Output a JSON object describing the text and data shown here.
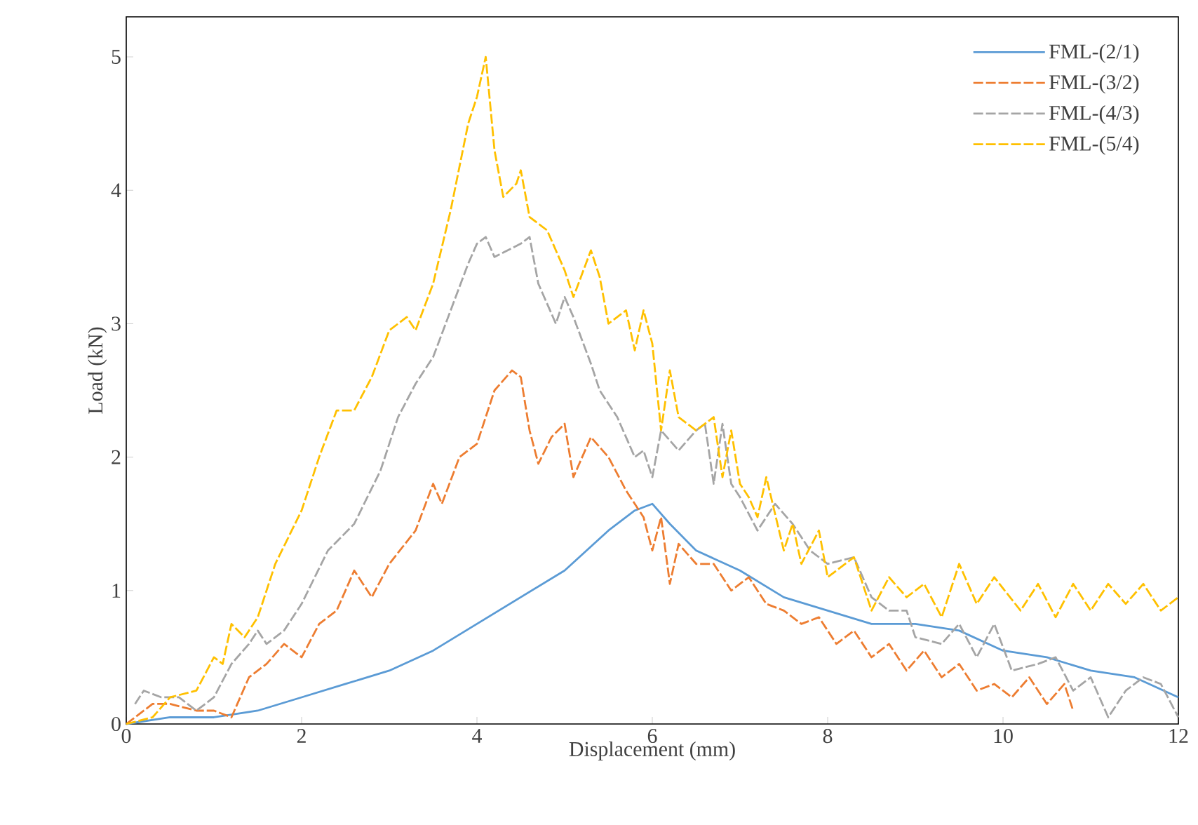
{
  "chart_data": {
    "type": "line",
    "xlabel": "Displacement (mm)",
    "ylabel": "Load (kN)",
    "xlim": [
      0,
      12
    ],
    "ylim": [
      0,
      5.3
    ],
    "xticks": [
      0,
      2,
      4,
      6,
      8,
      10,
      12
    ],
    "yticks": [
      0,
      1,
      2,
      3,
      4,
      5
    ],
    "grid": false,
    "legend": "top right",
    "marker": "none",
    "series": [
      {
        "name": "FML-(2/1)",
        "color": "#5b9bd5",
        "line_style": "solid",
        "x": [
          0,
          0.5,
          1.0,
          1.5,
          2.0,
          2.5,
          3.0,
          3.5,
          4.0,
          4.5,
          5.0,
          5.5,
          5.8,
          6.0,
          6.2,
          6.5,
          7.0,
          7.5,
          8.0,
          8.5,
          9.0,
          9.5,
          10.0,
          10.5,
          11.0,
          11.5,
          12.0
        ],
        "values": [
          0,
          0.05,
          0.05,
          0.1,
          0.2,
          0.3,
          0.4,
          0.55,
          0.75,
          0.95,
          1.15,
          1.45,
          1.6,
          1.65,
          1.5,
          1.3,
          1.15,
          0.95,
          0.85,
          0.75,
          0.75,
          0.7,
          0.55,
          0.5,
          0.4,
          0.35,
          0.2
        ]
      },
      {
        "name": "FML-(3/2)",
        "color": "#ed7d31",
        "line_style": "dashed",
        "x": [
          0,
          0.3,
          0.5,
          0.8,
          1.0,
          1.2,
          1.4,
          1.6,
          1.8,
          2.0,
          2.2,
          2.4,
          2.6,
          2.8,
          3.0,
          3.3,
          3.5,
          3.6,
          3.8,
          4.0,
          4.2,
          4.4,
          4.5,
          4.6,
          4.7,
          4.85,
          5.0,
          5.1,
          5.3,
          5.5,
          5.7,
          5.9,
          6.0,
          6.1,
          6.2,
          6.3,
          6.5,
          6.7,
          6.9,
          7.1,
          7.3,
          7.5,
          7.7,
          7.9,
          8.1,
          8.3,
          8.5,
          8.7,
          8.9,
          9.1,
          9.3,
          9.5,
          9.7,
          9.9,
          10.1,
          10.3,
          10.5,
          10.7,
          10.8
        ],
        "values": [
          0,
          0.15,
          0.15,
          0.1,
          0.1,
          0.05,
          0.35,
          0.45,
          0.6,
          0.5,
          0.75,
          0.85,
          1.15,
          0.95,
          1.2,
          1.45,
          1.8,
          1.65,
          2.0,
          2.1,
          2.5,
          2.65,
          2.6,
          2.2,
          1.95,
          2.15,
          2.25,
          1.85,
          2.15,
          2.0,
          1.75,
          1.55,
          1.3,
          1.55,
          1.05,
          1.35,
          1.2,
          1.2,
          1.0,
          1.1,
          0.9,
          0.85,
          0.75,
          0.8,
          0.6,
          0.7,
          0.5,
          0.6,
          0.4,
          0.55,
          0.35,
          0.45,
          0.25,
          0.3,
          0.2,
          0.35,
          0.15,
          0.3,
          0.1
        ]
      },
      {
        "name": "FML-(4/3)",
        "color": "#a5a5a5",
        "line_style": "dashed",
        "x": [
          0.1,
          0.2,
          0.4,
          0.6,
          0.8,
          1.0,
          1.2,
          1.4,
          1.5,
          1.6,
          1.8,
          2.0,
          2.3,
          2.6,
          2.9,
          3.1,
          3.3,
          3.5,
          3.7,
          3.9,
          4.0,
          4.1,
          4.2,
          4.5,
          4.6,
          4.7,
          4.9,
          5.0,
          5.1,
          5.3,
          5.4,
          5.6,
          5.8,
          5.9,
          6.0,
          6.1,
          6.3,
          6.5,
          6.6,
          6.7,
          6.8,
          6.9,
          7.0,
          7.2,
          7.4,
          7.6,
          7.8,
          8.0,
          8.3,
          8.5,
          8.7,
          8.9,
          9.0,
          9.3,
          9.5,
          9.7,
          9.9,
          10.1,
          10.4,
          10.6,
          10.8,
          11.0,
          11.2,
          11.4,
          11.6,
          11.8,
          12.0
        ],
        "values": [
          0.15,
          0.25,
          0.2,
          0.2,
          0.1,
          0.2,
          0.45,
          0.6,
          0.7,
          0.6,
          0.7,
          0.9,
          1.3,
          1.5,
          1.9,
          2.3,
          2.55,
          2.75,
          3.1,
          3.45,
          3.6,
          3.65,
          3.5,
          3.6,
          3.65,
          3.3,
          3.0,
          3.2,
          3.05,
          2.7,
          2.5,
          2.3,
          2.0,
          2.05,
          1.85,
          2.2,
          2.05,
          2.2,
          2.25,
          1.8,
          2.25,
          1.8,
          1.7,
          1.45,
          1.65,
          1.5,
          1.3,
          1.2,
          1.25,
          0.95,
          0.85,
          0.85,
          0.65,
          0.6,
          0.75,
          0.5,
          0.75,
          0.4,
          0.45,
          0.5,
          0.25,
          0.35,
          0.05,
          0.25,
          0.35,
          0.3,
          0.05
        ]
      },
      {
        "name": "FML-(5/4)",
        "color": "#ffc000",
        "line_style": "dashed",
        "x": [
          0,
          0.3,
          0.5,
          0.8,
          1.0,
          1.1,
          1.2,
          1.35,
          1.5,
          1.7,
          2.0,
          2.2,
          2.4,
          2.6,
          2.8,
          3.0,
          3.2,
          3.3,
          3.5,
          3.7,
          3.9,
          4.0,
          4.1,
          4.2,
          4.3,
          4.45,
          4.5,
          4.6,
          4.8,
          5.0,
          5.1,
          5.3,
          5.4,
          5.5,
          5.7,
          5.8,
          5.9,
          6.0,
          6.1,
          6.2,
          6.3,
          6.5,
          6.7,
          6.8,
          6.9,
          7.0,
          7.1,
          7.2,
          7.3,
          7.5,
          7.6,
          7.7,
          7.9,
          8.0,
          8.3,
          8.5,
          8.7,
          8.9,
          9.1,
          9.3,
          9.5,
          9.7,
          9.9,
          10.2,
          10.4,
          10.6,
          10.8,
          11.0,
          11.2,
          11.4,
          11.6,
          11.8,
          12.0
        ],
        "values": [
          0,
          0.05,
          0.2,
          0.25,
          0.5,
          0.45,
          0.75,
          0.65,
          0.8,
          1.2,
          1.6,
          2.0,
          2.35,
          2.35,
          2.6,
          2.95,
          3.05,
          2.95,
          3.3,
          3.85,
          4.5,
          4.7,
          5.0,
          4.3,
          3.95,
          4.05,
          4.15,
          3.8,
          3.7,
          3.4,
          3.2,
          3.55,
          3.35,
          3.0,
          3.1,
          2.8,
          3.1,
          2.85,
          2.2,
          2.65,
          2.3,
          2.2,
          2.3,
          1.85,
          2.2,
          1.8,
          1.7,
          1.55,
          1.85,
          1.3,
          1.5,
          1.2,
          1.45,
          1.1,
          1.25,
          0.85,
          1.1,
          0.95,
          1.05,
          0.8,
          1.2,
          0.9,
          1.1,
          0.85,
          1.05,
          0.8,
          1.05,
          0.85,
          1.05,
          0.9,
          1.05,
          0.85,
          0.95
        ]
      }
    ]
  }
}
